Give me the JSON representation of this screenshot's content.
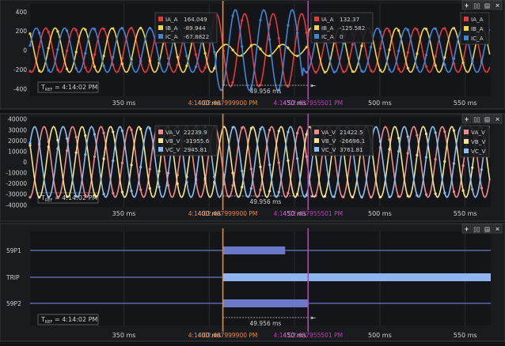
{
  "colors": {
    "cursor1": "#f0882a",
    "cursor2": "#c23cc0",
    "IA": "#e03a3a",
    "IB": "#f2d54a",
    "IC": "#3f86d6",
    "VA": "#f08a8a",
    "VB": "#f5e58a",
    "VC": "#8ac0f0",
    "digital": "#6a78c8",
    "trip": "#8fb4f0"
  },
  "panels": [
    {
      "id": "current",
      "y_ticks": [
        "400",
        "200",
        "0",
        "-200",
        "-400"
      ],
      "y_vals": [
        400,
        200,
        0,
        -200,
        -400
      ],
      "ylim": [
        -480,
        480
      ],
      "cursor1_box": [
        {
          "ch": "IA_A",
          "val": "164.049",
          "color": "IA"
        },
        {
          "ch": "IB_A",
          "val": "-89.944",
          "color": "IB"
        },
        {
          "ch": "IC_A",
          "val": "-67.8822",
          "color": "IC"
        }
      ],
      "cursor2_box": [
        {
          "ch": "IA_A",
          "val": "132.37",
          "color": "IA"
        },
        {
          "ch": "IB_A",
          "val": "-125.582",
          "color": "IB"
        },
        {
          "ch": "IC_A",
          "val": "0",
          "color": "IC"
        }
      ],
      "legend": [
        {
          "ch": "IA_A",
          "color": "IA"
        },
        {
          "ch": "IB_A",
          "color": "IB"
        },
        {
          "ch": "IC_A",
          "color": "IC"
        }
      ]
    },
    {
      "id": "voltage",
      "y_ticks": [
        "40000",
        "30000",
        "20000",
        "10000",
        "0",
        "-10000",
        "-20000",
        "-30000",
        "-40000"
      ],
      "y_vals": [
        40000,
        30000,
        20000,
        10000,
        0,
        -10000,
        -20000,
        -30000,
        -40000
      ],
      "ylim": [
        -42000,
        42000
      ],
      "cursor1_box": [
        {
          "ch": "VA_V",
          "val": "22239.9",
          "color": "VA"
        },
        {
          "ch": "VB_V",
          "val": "-31955.6",
          "color": "VB"
        },
        {
          "ch": "VC_V",
          "val": "2945.81",
          "color": "VC"
        }
      ],
      "cursor2_box": [
        {
          "ch": "VA_V",
          "val": "21422.5",
          "color": "VA"
        },
        {
          "ch": "VB_V",
          "val": "-26696.1",
          "color": "VB"
        },
        {
          "ch": "VC_V",
          "val": "3761.81",
          "color": "VC"
        }
      ],
      "legend": [
        {
          "ch": "VA_V",
          "color": "VA"
        },
        {
          "ch": "VB_V",
          "color": "VB"
        },
        {
          "ch": "VC_V",
          "color": "VC"
        }
      ]
    },
    {
      "id": "digital",
      "channels": [
        "59P1",
        "TRIP",
        "59P2"
      ]
    }
  ],
  "time_axis": {
    "ticks": [
      "350 ms",
      "400 ms",
      "450 ms",
      "500 ms",
      "550 ms"
    ],
    "tick_ms": [
      350,
      400,
      450,
      500,
      550
    ],
    "range_ms": [
      295,
      565
    ]
  },
  "cursors": {
    "c1_label": "4:14:02.407999900 PM",
    "c1_ms": 407.9999,
    "c2_label": "4:14:02.457955501 PM",
    "c2_ms": 457.955501,
    "delta_label": "49.956 ms"
  },
  "tref_label": "= 4:14:02 PM",
  "tref_prefix": "T",
  "tref_sub": "REF",
  "toolbar_icons": [
    "plus-icon",
    "columns-icon",
    "rows-icon",
    "close-icon"
  ],
  "digital_states": {
    "59P1": [
      [
        407.9,
        444.5
      ]
    ],
    "TRIP": [
      [
        407.9,
        565
      ]
    ],
    "59P2": [
      [
        407.9,
        458
      ]
    ]
  },
  "chart_data": [
    {
      "type": "line",
      "title": "",
      "ylim": [
        -480,
        480
      ],
      "y_ticks": [
        400,
        200,
        0,
        -200,
        -400
      ],
      "x_ticks": [
        "350 ms",
        "400 ms",
        "450 ms",
        "500 ms",
        "550 ms"
      ],
      "series": [
        {
          "name": "IA_A",
          "description": "sinusoid, amplitude ~230 pre-fault, ~380 during fault",
          "frequency_hz": 60
        },
        {
          "name": "IB_A",
          "description": "sinusoid, amplitude ~230 pre-fault, ~60 during fault",
          "frequency_hz": 60
        },
        {
          "name": "IC_A",
          "description": "sinusoid, amplitude ~230 pre-fault, ~420 during fault",
          "frequency_hz": 60
        }
      ]
    },
    {
      "type": "line",
      "title": "",
      "ylim": [
        -42000,
        42000
      ],
      "y_ticks": [
        40000,
        30000,
        20000,
        10000,
        0,
        -10000,
        -20000,
        -30000,
        -40000
      ],
      "x_ticks": [
        "350 ms",
        "400 ms",
        "450 ms",
        "500 ms",
        "550 ms"
      ],
      "series": [
        {
          "name": "VA_V",
          "description": "sinusoid amplitude ~33000",
          "frequency_hz": 60
        },
        {
          "name": "VB_V",
          "description": "sinusoid amplitude ~33000",
          "frequency_hz": 60
        },
        {
          "name": "VC_V",
          "description": "sinusoid amplitude ~33000",
          "frequency_hz": 60
        }
      ]
    }
  ]
}
